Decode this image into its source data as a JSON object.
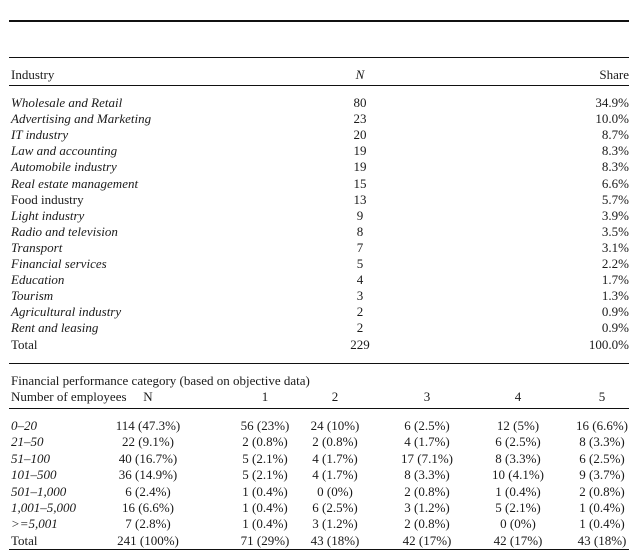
{
  "industry_table": {
    "header": {
      "industry": "Industry",
      "n": "N",
      "share": "Share"
    },
    "rows": [
      {
        "label": "Wholesale and Retail",
        "italic": true,
        "n": "80",
        "share": "34.9%"
      },
      {
        "label": "Advertising and Marketing",
        "italic": true,
        "n": "23",
        "share": "10.0%"
      },
      {
        "label": "IT industry",
        "italic": true,
        "n": "20",
        "share": "8.7%"
      },
      {
        "label": "Law and accounting",
        "italic": true,
        "n": "19",
        "share": "8.3%"
      },
      {
        "label": "Automobile industry",
        "italic": true,
        "n": "19",
        "share": "8.3%"
      },
      {
        "label": "Real estate management",
        "italic": true,
        "n": "15",
        "share": "6.6%"
      },
      {
        "label": "Food industry",
        "italic": false,
        "n": "13",
        "share": "5.7%"
      },
      {
        "label": "Light industry",
        "italic": true,
        "n": "9",
        "share": "3.9%"
      },
      {
        "label": "Radio and television",
        "italic": true,
        "n": "8",
        "share": "3.5%"
      },
      {
        "label": "Transport",
        "italic": true,
        "n": "7",
        "share": "3.1%"
      },
      {
        "label": "Financial services",
        "italic": true,
        "n": "5",
        "share": "2.2%"
      },
      {
        "label": "Education",
        "italic": true,
        "n": "4",
        "share": "1.7%"
      },
      {
        "label": "Tourism",
        "italic": true,
        "n": "3",
        "share": "1.3%"
      },
      {
        "label": "Agricultural industry",
        "italic": true,
        "n": "2",
        "share": "0.9%"
      },
      {
        "label": "Rent and leasing",
        "italic": true,
        "n": "2",
        "share": "0.9%"
      },
      {
        "label": "Total",
        "italic": false,
        "n": "229",
        "share": "100.0%"
      }
    ]
  },
  "employee_table": {
    "caption": "Financial performance category (based on objective data)",
    "header": {
      "label": "Number of employees",
      "cols": [
        "N",
        "1",
        "2",
        "3",
        "4",
        "5"
      ]
    },
    "rows": [
      {
        "label": "0–20",
        "italic": true,
        "cells": [
          "114 (47.3%)",
          "56 (23%)",
          "24 (10%)",
          "6 (2.5%)",
          "12 (5%)",
          "16 (6.6%)"
        ]
      },
      {
        "label": "21–50",
        "italic": true,
        "cells": [
          "22 (9.1%)",
          "2 (0.8%)",
          "2 (0.8%)",
          "4 (1.7%)",
          "6 (2.5%)",
          "8 (3.3%)"
        ]
      },
      {
        "label": "51–100",
        "italic": true,
        "cells": [
          "40 (16.7%)",
          "5 (2.1%)",
          "4 (1.7%)",
          "17 (7.1%)",
          "8 (3.3%)",
          "6 (2.5%)"
        ]
      },
      {
        "label": "101–500",
        "italic": true,
        "cells": [
          "36 (14.9%)",
          "5 (2.1%)",
          "4 (1.7%)",
          "8 (3.3%)",
          "10 (4.1%)",
          "9 (3.7%)"
        ]
      },
      {
        "label": "501–1,000",
        "italic": true,
        "cells": [
          "6 (2.4%)",
          "1 (0.4%)",
          "0 (0%)",
          "2 (0.8%)",
          "1 (0.4%)",
          "2 (0.8%)"
        ]
      },
      {
        "label": "1,001–5,000",
        "italic": true,
        "cells": [
          "16 (6.6%)",
          "1 (0.4%)",
          "6 (2.5%)",
          "3 (1.2%)",
          "5 (2.1%)",
          "1 (0.4%)"
        ]
      },
      {
        "label": ">=5,001",
        "italic": true,
        "cells": [
          "7 (2.8%)",
          "1 (0.4%)",
          "3 (1.2%)",
          "2 (0.8%)",
          "0 (0%)",
          "1 (0.4%)"
        ]
      },
      {
        "label": "Total",
        "italic": false,
        "cells": [
          "241 (100%)",
          "71 (29%)",
          "43 (18%)",
          "42 (17%)",
          "42 (17%)",
          "43 (18%)"
        ]
      }
    ]
  }
}
